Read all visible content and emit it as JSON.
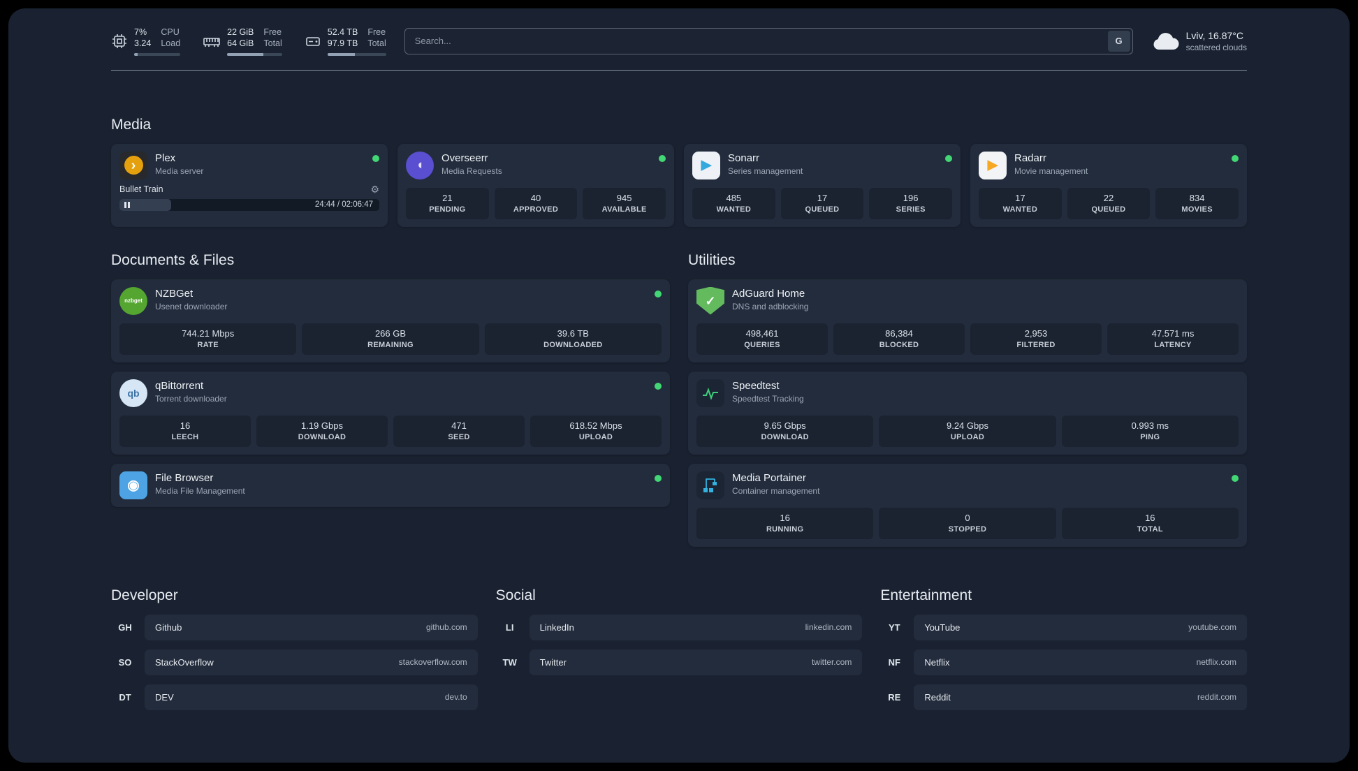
{
  "topbar": {
    "system": [
      {
        "id": "cpu",
        "value_top": "7%",
        "value_bottom": "3.24",
        "label_top": "CPU",
        "label_bottom": "Load",
        "progress_pct": 7
      },
      {
        "id": "memory",
        "value_top": "22 GiB",
        "value_bottom": "64 GiB",
        "label_top": "Free",
        "label_bottom": "Total",
        "progress_pct": 66
      },
      {
        "id": "disk",
        "value_top": "52.4 TB",
        "value_bottom": "97.9 TB",
        "label_top": "Free",
        "label_bottom": "Total",
        "progress_pct": 47
      }
    ],
    "search": {
      "placeholder": "Search...",
      "button_label": "G"
    },
    "weather": {
      "location": "Lviv, 16.87°C",
      "condition": "scattered clouds"
    }
  },
  "media": {
    "title": "Media",
    "cards": [
      {
        "name": "Plex",
        "subtitle": "Media server",
        "online": true,
        "icon": {
          "shape": "square",
          "bg": "#27292c",
          "inner_bg": "#e5a00d",
          "fg": "#ffffff",
          "glyph": "›",
          "glyph_size": 20
        },
        "player": {
          "title": "Bullet Train",
          "time": "24:44 / 02:06:47",
          "progress_pct": 20
        }
      },
      {
        "name": "Overseerr",
        "subtitle": "Media Requests",
        "online": true,
        "icon": {
          "shape": "circle",
          "bg": "#5a4fd0",
          "fg": "#e6e2fb",
          "glyph": "◖",
          "glyph_size": 19
        },
        "stats": [
          {
            "value": "21",
            "label": "PENDING"
          },
          {
            "value": "40",
            "label": "APPROVED"
          },
          {
            "value": "945",
            "label": "AVAILABLE"
          }
        ]
      },
      {
        "name": "Sonarr",
        "subtitle": "Series management",
        "online": true,
        "icon": {
          "shape": "square",
          "bg": "#eef2f7",
          "fg": "#35a8dd",
          "glyph": "▶",
          "glyph_size": 19
        },
        "stats": [
          {
            "value": "485",
            "label": "WANTED"
          },
          {
            "value": "17",
            "label": "QUEUED"
          },
          {
            "value": "196",
            "label": "SERIES"
          }
        ]
      },
      {
        "name": "Radarr",
        "subtitle": "Movie management",
        "online": true,
        "icon": {
          "shape": "square",
          "bg": "#f2f4f6",
          "fg": "#f7a823",
          "glyph": "▶",
          "glyph_size": 19
        },
        "stats": [
          {
            "value": "17",
            "label": "WANTED"
          },
          {
            "value": "22",
            "label": "QUEUED"
          },
          {
            "value": "834",
            "label": "MOVIES"
          }
        ]
      }
    ]
  },
  "columns": [
    {
      "title": "Documents & Files",
      "cards": [
        {
          "name": "NZBGet",
          "subtitle": "Usenet downloader",
          "online": true,
          "icon": {
            "shape": "circle",
            "bg": "#54a631",
            "fg": "#ffffff",
            "glyph": "nzbget",
            "glyph_size": 8
          },
          "stats": [
            {
              "value": "744.21 Mbps",
              "label": "RATE"
            },
            {
              "value": "266 GB",
              "label": "REMAINING"
            },
            {
              "value": "39.6 TB",
              "label": "DOWNLOADED"
            }
          ]
        },
        {
          "name": "qBittorrent",
          "subtitle": "Torrent downloader",
          "online": true,
          "icon": {
            "shape": "circle",
            "bg": "#d6e6f5",
            "fg": "#3a72a5",
            "glyph": "qb",
            "glyph_size": 14
          },
          "stats": [
            {
              "value": "16",
              "label": "LEECH"
            },
            {
              "value": "1.19 Gbps",
              "label": "DOWNLOAD"
            },
            {
              "value": "471",
              "label": "SEED"
            },
            {
              "value": "618.52 Mbps",
              "label": "UPLOAD"
            }
          ]
        },
        {
          "name": "File Browser",
          "subtitle": "Media File Management",
          "online": true,
          "icon": {
            "shape": "square",
            "bg": "#4da3e3",
            "fg": "#ffffff",
            "glyph": "◉",
            "glyph_size": 20
          }
        }
      ]
    },
    {
      "title": "Utilities",
      "cards": [
        {
          "name": "AdGuard Home",
          "subtitle": "DNS and adblocking",
          "online": false,
          "icon": {
            "shape": "shield",
            "bg": "#63bb5e",
            "fg": "#ffffff",
            "glyph": "✓",
            "glyph_size": 18
          },
          "stats": [
            {
              "value": "498,461",
              "label": "QUERIES"
            },
            {
              "value": "86,384",
              "label": "BLOCKED"
            },
            {
              "value": "2,953",
              "label": "FILTERED"
            },
            {
              "value": "47.571 ms",
              "label": "LATENCY"
            }
          ]
        },
        {
          "name": "Speedtest",
          "subtitle": "Speedtest Tracking",
          "online": false,
          "icon": {
            "shape": "square",
            "bg": "#1b2533",
            "svg": "waveform",
            "stroke": "#3fce7b"
          },
          "stats": [
            {
              "value": "9.65 Gbps",
              "label": "DOWNLOAD"
            },
            {
              "value": "9.24 Gbps",
              "label": "UPLOAD"
            },
            {
              "value": "0.993 ms",
              "label": "PING"
            }
          ]
        },
        {
          "name": "Media Portainer",
          "subtitle": "Container management",
          "online": true,
          "icon": {
            "shape": "square",
            "bg": "#1b2533",
            "svg": "crane",
            "stroke": "#33b2e0"
          },
          "stats": [
            {
              "value": "16",
              "label": "RUNNING"
            },
            {
              "value": "0",
              "label": "STOPPED"
            },
            {
              "value": "16",
              "label": "TOTAL"
            }
          ]
        }
      ]
    }
  ],
  "link_groups": [
    {
      "title": "Developer",
      "links": [
        {
          "abbr": "GH",
          "name": "Github",
          "domain": "github.com"
        },
        {
          "abbr": "SO",
          "name": "StackOverflow",
          "domain": "stackoverflow.com"
        },
        {
          "abbr": "DT",
          "name": "DEV",
          "domain": "dev.to"
        }
      ]
    },
    {
      "title": "Social",
      "links": [
        {
          "abbr": "LI",
          "name": "LinkedIn",
          "domain": "linkedin.com"
        },
        {
          "abbr": "TW",
          "name": "Twitter",
          "domain": "twitter.com"
        }
      ]
    },
    {
      "title": "Entertainment",
      "links": [
        {
          "abbr": "YT",
          "name": "YouTube",
          "domain": "youtube.com"
        },
        {
          "abbr": "NF",
          "name": "Netflix",
          "domain": "netflix.com"
        },
        {
          "abbr": "RE",
          "name": "Reddit",
          "domain": "reddit.com"
        }
      ]
    }
  ],
  "colors": {
    "status_online": "#43d675",
    "accent_green": "#3fce7b",
    "accent_blue": "#33b2e0",
    "card_bg": "#232c3c",
    "page_bg": "#1a2231"
  }
}
